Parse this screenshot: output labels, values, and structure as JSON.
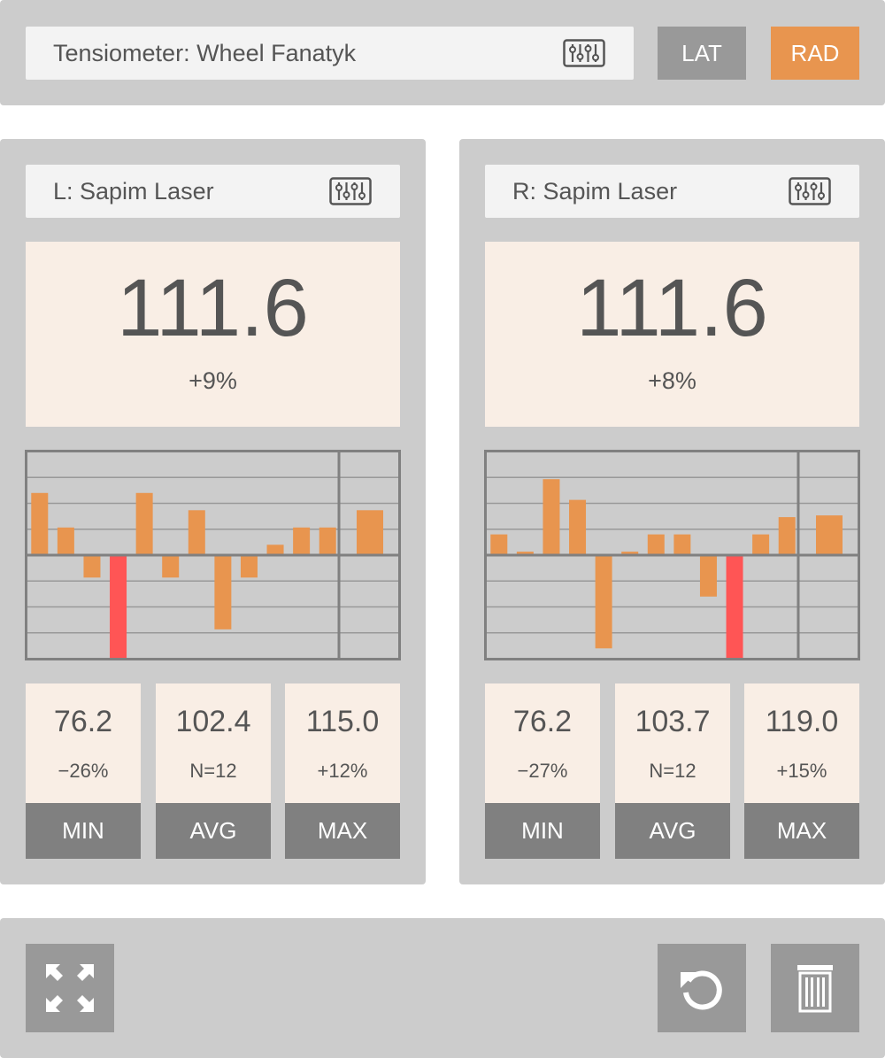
{
  "header": {
    "tensiometer_label": "Tensiometer: Wheel Fanatyk",
    "mode_lat": "LAT",
    "mode_rad": "RAD",
    "active_mode": "RAD"
  },
  "colors": {
    "accent": "#e8954f",
    "alert": "#ff5555",
    "reading_bg": "#f9eee5",
    "panel": "#cccccc"
  },
  "sides": [
    {
      "spoke": "L: Sapim Laser",
      "value": "111.6",
      "delta": "+9%",
      "stats": {
        "min": {
          "value": "76.2",
          "sub": "−26%",
          "label": "MIN"
        },
        "avg": {
          "value": "102.4",
          "sub": "N=12",
          "label": "AVG"
        },
        "max": {
          "value": "115.0",
          "sub": "+12%",
          "label": "MAX"
        }
      },
      "chart_data": {
        "type": "bar",
        "series": [
          {
            "values": [
              0.36,
              0.16,
              -0.13,
              -0.6,
              0.36,
              -0.13,
              0.26,
              -0.43,
              -0.13,
              0.06,
              0.16,
              0.16
            ]
          }
        ],
        "current": 0.26,
        "highlight_index": 3,
        "ylim": [
          -0.6,
          0.6
        ],
        "grid": true
      }
    },
    {
      "spoke": "R: Sapim Laser",
      "value": "111.6",
      "delta": "+8%",
      "stats": {
        "min": {
          "value": "76.2",
          "sub": "−27%",
          "label": "MIN"
        },
        "avg": {
          "value": "103.7",
          "sub": "N=12",
          "label": "AVG"
        },
        "max": {
          "value": "119.0",
          "sub": "+15%",
          "label": "MAX"
        }
      },
      "chart_data": {
        "type": "bar",
        "series": [
          {
            "values": [
              0.12,
              0.02,
              0.44,
              0.32,
              -0.54,
              0.02,
              0.12,
              0.12,
              -0.24,
              -0.6,
              0.12,
              0.22
            ]
          }
        ],
        "current": 0.23,
        "highlight_index": 9,
        "ylim": [
          -0.6,
          0.6
        ],
        "grid": true
      }
    }
  ],
  "footer": {
    "expand_icon": "expand-icon",
    "reset_icon": "reset-icon",
    "delete_icon": "trash-icon"
  }
}
